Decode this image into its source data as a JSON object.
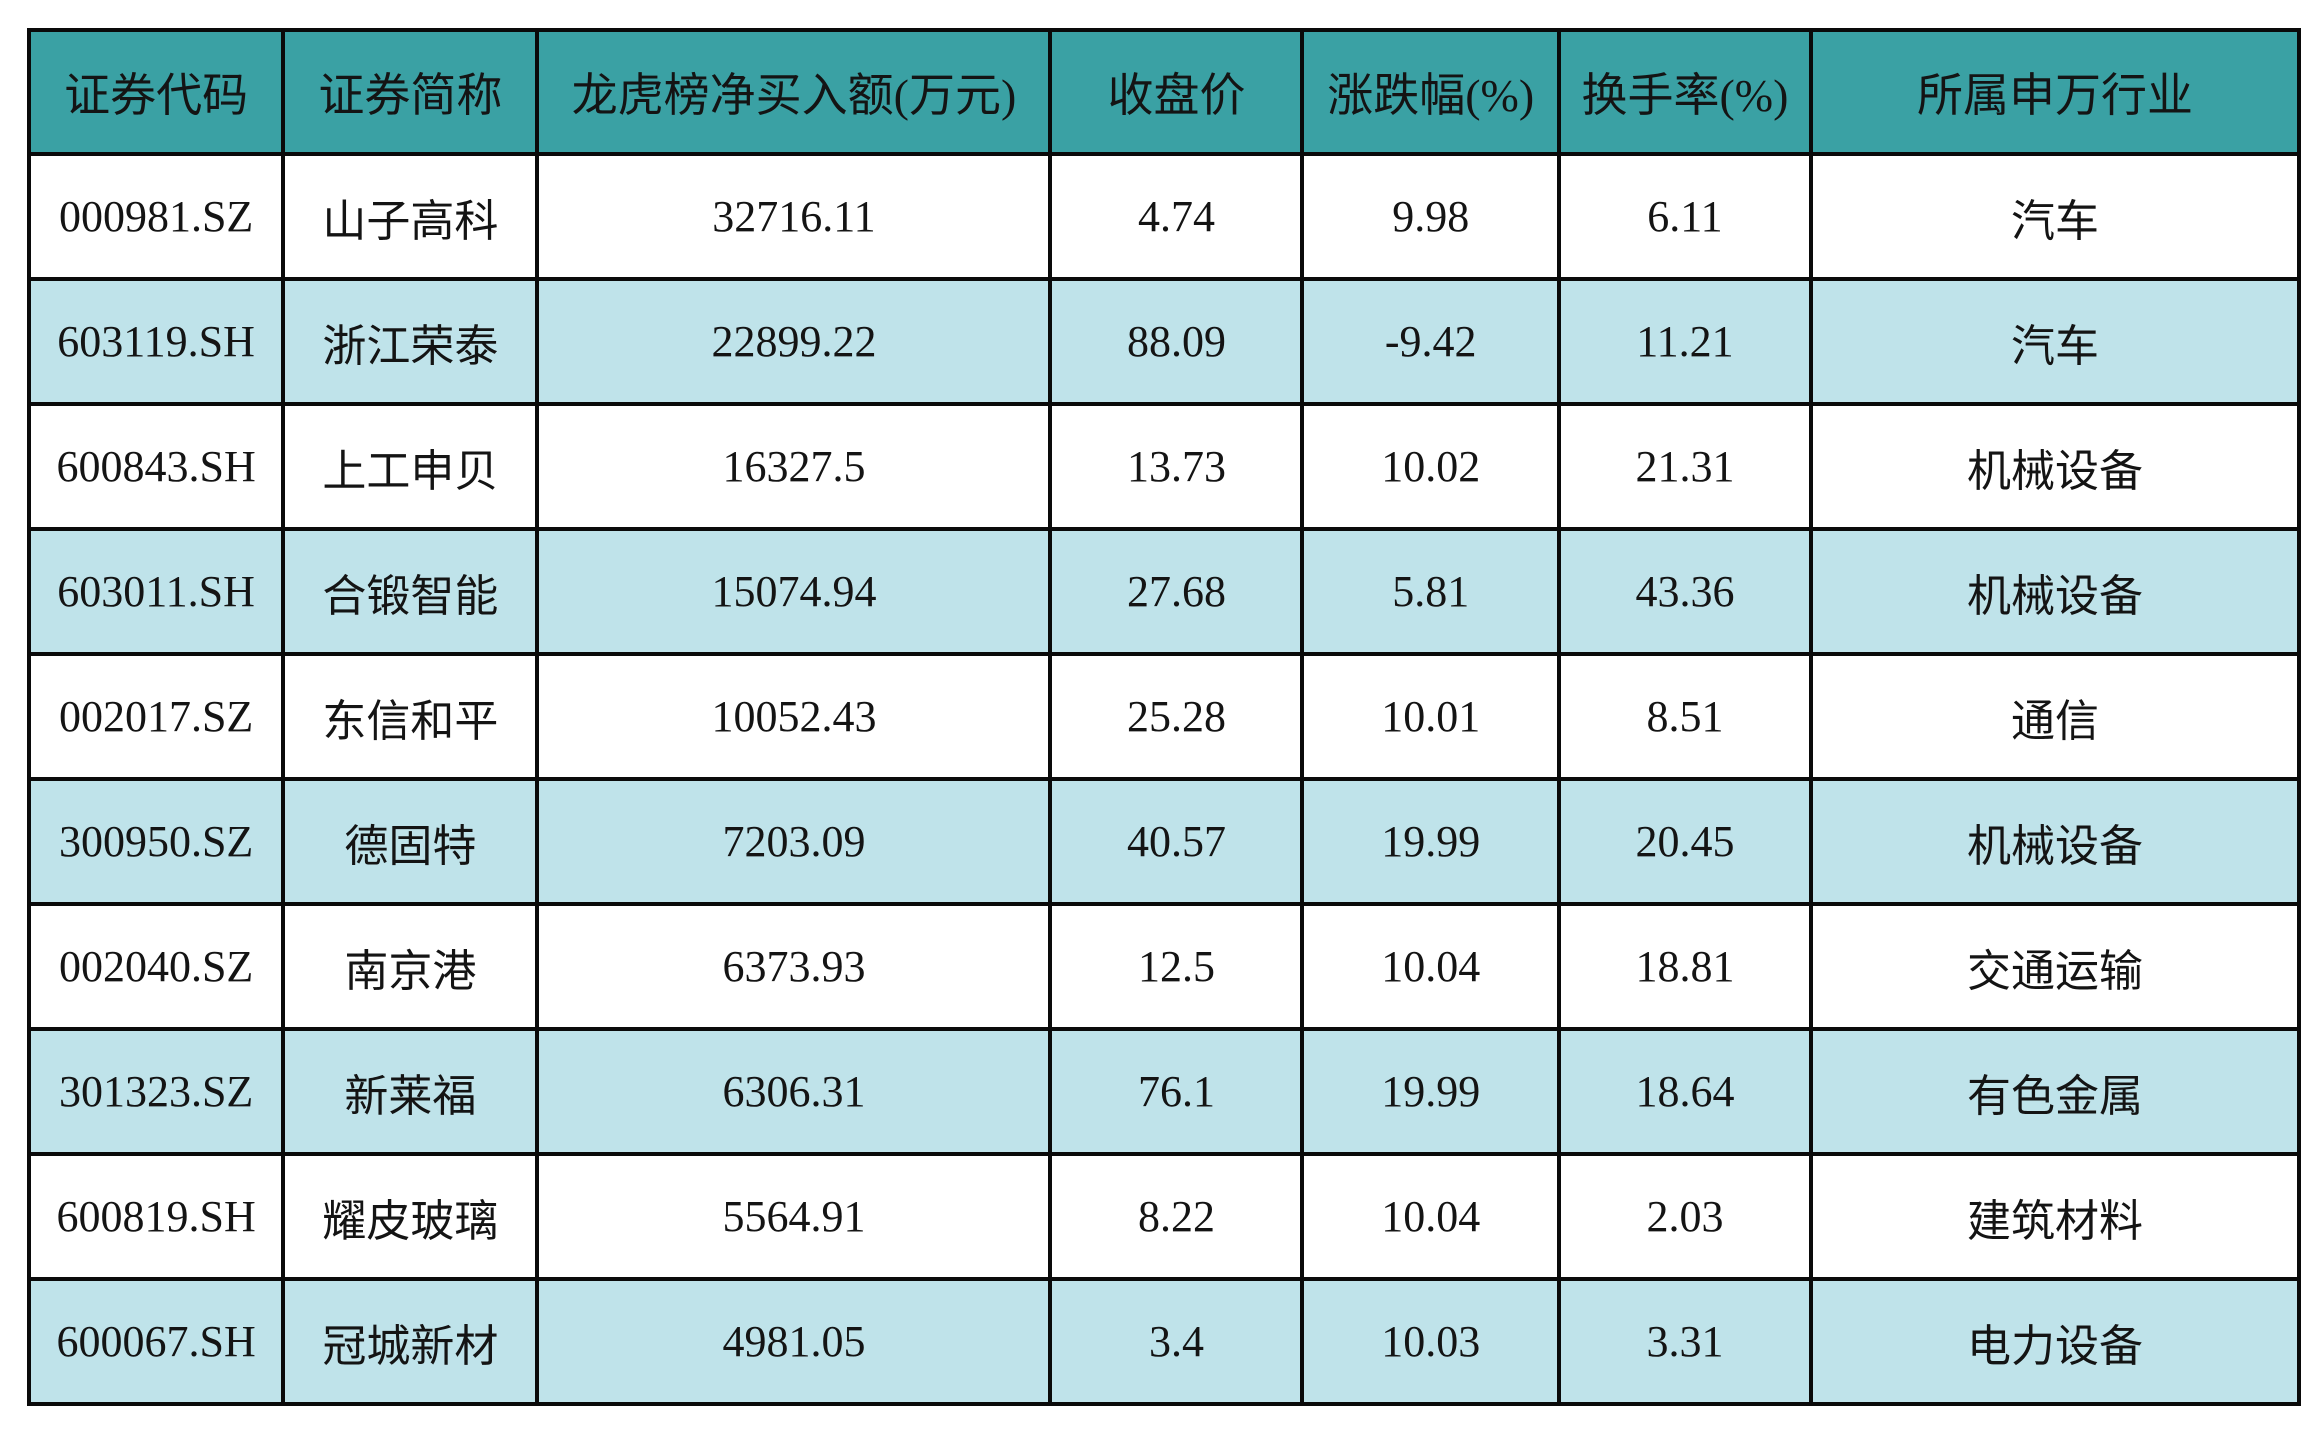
{
  "colors": {
    "header_bg": "#3aa1a4",
    "row_alt_bg": "#bfe3ea",
    "row_bg": "#ffffff",
    "border": "#0a0a0a",
    "text": "#141414"
  },
  "chart_data": {
    "type": "table",
    "title": "",
    "columns": [
      "证券代码",
      "证券简称",
      "龙虎榜净买入额(万元)",
      "收盘价",
      "涨跌幅(%)",
      "换手率(%)",
      "所属申万行业"
    ],
    "rows": [
      [
        "000981.SZ",
        "山子高科",
        "32716.11",
        "4.74",
        "9.98",
        "6.11",
        "汽车"
      ],
      [
        "603119.SH",
        "浙江荣泰",
        "22899.22",
        "88.09",
        "-9.42",
        "11.21",
        "汽车"
      ],
      [
        "600843.SH",
        "上工申贝",
        "16327.5",
        "13.73",
        "10.02",
        "21.31",
        "机械设备"
      ],
      [
        "603011.SH",
        "合锻智能",
        "15074.94",
        "27.68",
        "5.81",
        "43.36",
        "机械设备"
      ],
      [
        "002017.SZ",
        "东信和平",
        "10052.43",
        "25.28",
        "10.01",
        "8.51",
        "通信"
      ],
      [
        "300950.SZ",
        "德固特",
        "7203.09",
        "40.57",
        "19.99",
        "20.45",
        "机械设备"
      ],
      [
        "002040.SZ",
        "南京港",
        "6373.93",
        "12.5",
        "10.04",
        "18.81",
        "交通运输"
      ],
      [
        "301323.SZ",
        "新莱福",
        "6306.31",
        "76.1",
        "19.99",
        "18.64",
        "有色金属"
      ],
      [
        "600819.SH",
        "耀皮玻璃",
        "5564.91",
        "8.22",
        "10.04",
        "2.03",
        "建筑材料"
      ],
      [
        "600067.SH",
        "冠城新材",
        "4981.05",
        "3.4",
        "10.03",
        "3.31",
        "电力设备"
      ]
    ],
    "column_keys": [
      "code",
      "name",
      "net_buy",
      "close",
      "change_pct",
      "turnover",
      "industry"
    ],
    "layout": {
      "header_style": "teal band, black text",
      "row_striping": "white / light-blue alternating starting white",
      "grid": "on, heavy black borders",
      "alignment": "all cells centered"
    }
  }
}
